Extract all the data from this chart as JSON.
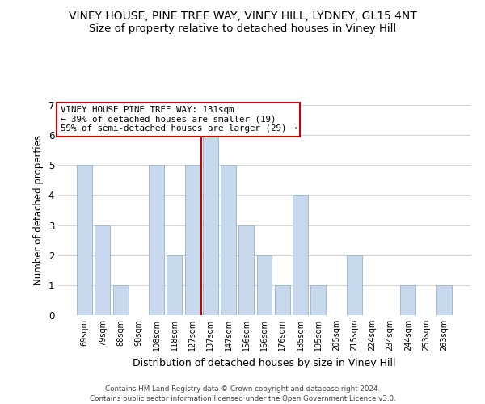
{
  "title": "VINEY HOUSE, PINE TREE WAY, VINEY HILL, LYDNEY, GL15 4NT",
  "subtitle": "Size of property relative to detached houses in Viney Hill",
  "xlabel": "Distribution of detached houses by size in Viney Hill",
  "ylabel": "Number of detached properties",
  "bar_labels": [
    "69sqm",
    "79sqm",
    "88sqm",
    "98sqm",
    "108sqm",
    "118sqm",
    "127sqm",
    "137sqm",
    "147sqm",
    "156sqm",
    "166sqm",
    "176sqm",
    "185sqm",
    "195sqm",
    "205sqm",
    "215sqm",
    "224sqm",
    "234sqm",
    "244sqm",
    "253sqm",
    "263sqm"
  ],
  "bar_values": [
    5,
    3,
    1,
    0,
    5,
    2,
    5,
    6,
    5,
    3,
    2,
    1,
    4,
    1,
    0,
    2,
    0,
    0,
    1,
    0,
    1
  ],
  "bar_color": "#c8d9ed",
  "bar_edge_color": "#9eb8d0",
  "vline_x_index": 6.5,
  "vline_color": "#cc0000",
  "ylim": [
    0,
    7
  ],
  "yticks": [
    0,
    1,
    2,
    3,
    4,
    5,
    6,
    7
  ],
  "annotation_title": "VINEY HOUSE PINE TREE WAY: 131sqm",
  "annotation_line1": "← 39% of detached houses are smaller (19)",
  "annotation_line2": "59% of semi-detached houses are larger (29) →",
  "annotation_box_color": "#ffffff",
  "annotation_box_edge": "#cc0000",
  "footer1": "Contains HM Land Registry data © Crown copyright and database right 2024.",
  "footer2": "Contains public sector information licensed under the Open Government Licence v3.0.",
  "background_color": "#ffffff",
  "title_fontsize": 10,
  "subtitle_fontsize": 9.5
}
